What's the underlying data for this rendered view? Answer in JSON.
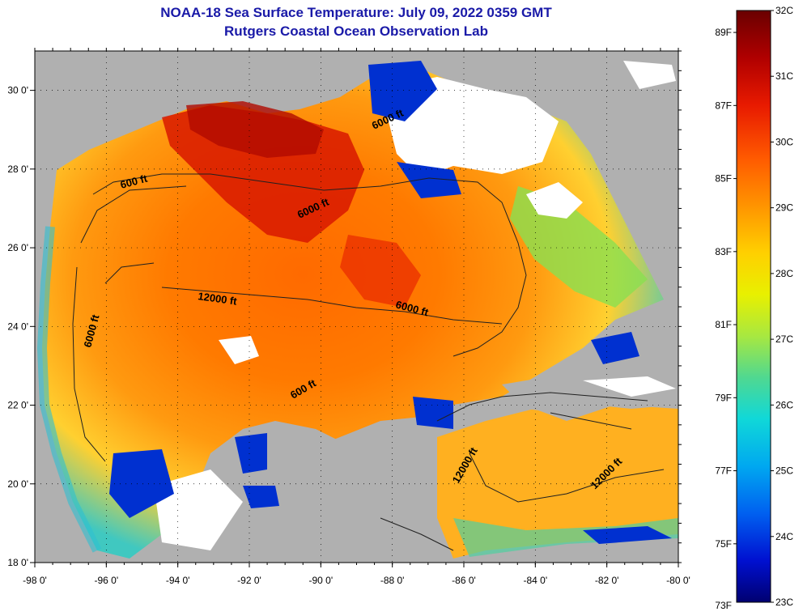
{
  "title": "NOAA-18 Sea Surface Temperature:  July 09, 2022 0359 GMT",
  "subtitle": "Rutgers Coastal Ocean Observation Lab",
  "map": {
    "lon_range": [
      -98,
      -80
    ],
    "lat_range": [
      18,
      31
    ],
    "lon_ticks": [
      "-98 0'",
      "-96 0'",
      "-94 0'",
      "-92 0'",
      "-90 0'",
      "-88 0'",
      "-86 0'",
      "-84 0'",
      "-82 0'",
      "-80 0'"
    ],
    "lat_ticks": [
      "30 0'",
      "28 0'",
      "26 0'",
      "24 0'",
      "22 0'",
      "20 0'",
      "18 0'"
    ],
    "contour_labels": [
      "600 ft",
      "6000 ft",
      "12000 ft",
      "6000 ft",
      "6000 ft",
      "600 ft",
      "6000 ft",
      "12000 ft",
      "12000 ft"
    ]
  },
  "colorbar": {
    "fahrenheit_labels": [
      "89F",
      "87F",
      "85F",
      "83F",
      "81F",
      "79F",
      "77F",
      "75F",
      "73F"
    ],
    "celsius_labels": [
      "32C",
      "31C",
      "30C",
      "29C",
      "28C",
      "27C",
      "26C",
      "25C",
      "24C",
      "23C"
    ],
    "colors": [
      "#6a0000",
      "#b00000",
      "#e81a00",
      "#ff5a00",
      "#ff9400",
      "#ffd000",
      "#e8f000",
      "#a8e840",
      "#50d890",
      "#10d8d8",
      "#00a8f0",
      "#0060f0",
      "#0010d0",
      "#000070"
    ]
  }
}
